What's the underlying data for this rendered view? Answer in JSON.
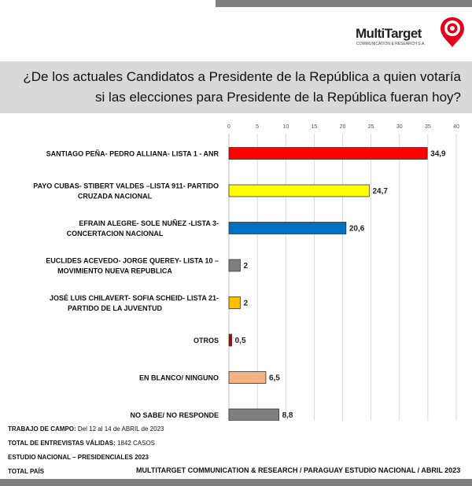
{
  "logo": {
    "name": "MultiTarget",
    "subtitle": "COMMUNICATION & RESEARCH S.A."
  },
  "title": "¿De los actuales Candidatos a Presidente de la República a quien votaría si las elecciones para Presidente de la República fueran hoy?",
  "chart_data": {
    "type": "bar",
    "orientation": "horizontal",
    "title": "¿De los actuales Candidatos a Presidente de la República a quien votaría si las elecciones para Presidente de la República fueran hoy?",
    "xlim": [
      0,
      40
    ],
    "xticks": [
      0,
      5,
      10,
      15,
      20,
      25,
      30,
      35,
      40
    ],
    "grid": true,
    "categories": [
      [
        "SANTIAGO PEÑA- PEDRO ALLIANA- LISTA 1 - ANR"
      ],
      [
        "PAYO CUBAS- STIBERT VALDES –LISTA 911- PARTIDO",
        "CRUZADA NACIONAL"
      ],
      [
        "EFRAIN ALEGRE- SOLE NUÑEZ -LISTA 3-",
        "CONCERTACION NACIONAL"
      ],
      [
        "EUCLIDES ACEVEDO- JORGE QUEREY- LISTA 10 –",
        "MOVIMIENTO NUEVA REPUBLICA"
      ],
      [
        "JOSÉ LUIS CHILAVERT- SOFIA SCHEID- LISTA 21-",
        "PARTIDO DE LA JUVENTUD"
      ],
      [
        "OTROS"
      ],
      [
        "EN BLANCO/ NINGUNO"
      ],
      [
        "NO SABE/ NO RESPONDE"
      ]
    ],
    "values": [
      34.9,
      24.7,
      20.6,
      2,
      2,
      0.5,
      6.5,
      8.8
    ],
    "value_labels": [
      "34,9",
      "24,7",
      "20,6",
      "2",
      "2",
      "0,5",
      "6,5",
      "8,8"
    ],
    "colors": [
      "#ff0000",
      "#ffff00",
      "#0070c0",
      "#7f7f7f",
      "#ffc000",
      "#c00000",
      "#f4b183",
      "#7f7f7f"
    ]
  },
  "footer": {
    "fieldwork_label": "TRABAJO DE CAMPO:",
    "fieldwork_value": "Del 12 al 14 de ABRIL  de 2023",
    "interviews_label": "TOTAL DE ENTREVISTAS VÁLIDAS:",
    "interviews_value": "1842 CASOS",
    "study": "ESTUDIO NACIONAL – PRESIDENCIALES 2023",
    "scope": "TOTAL PAÍS",
    "source": "MULTITARGET COMMUNICATION & RESEARCH / PARAGUAY ESTUDIO NACIONAL  / ABRIL  2023"
  }
}
